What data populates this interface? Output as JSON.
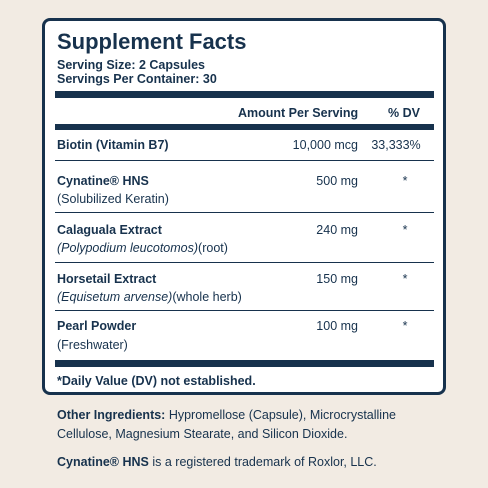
{
  "panel": {
    "title": "Supplement Facts",
    "serving_size": "Serving Size: 2 Capsules",
    "servings_per_container": "Servings Per Container: 30",
    "columns": [
      "Amount Per Serving",
      "% DV"
    ],
    "rows": [
      {
        "name": "Biotin (Vitamin B7)",
        "amount": "10,000 mcg",
        "dv": "33,333%"
      },
      {
        "name": "Cynatine® HNS",
        "note": "(Solubilized Keratin)",
        "amount": "500 mg",
        "dv": "*"
      },
      {
        "name": "Calaguala Extract",
        "note_italic": "(Polypodium leucotomos)",
        "note": "(root)",
        "amount": "240 mg",
        "dv": "*"
      },
      {
        "name": "Horsetail Extract",
        "note_italic": "(Equisetum arvense)",
        "note": "(whole herb)",
        "amount": "150 mg",
        "dv": "*"
      },
      {
        "name": "Pearl Powder",
        "note": "(Freshwater)",
        "amount": "100 mg",
        "dv": "*"
      }
    ],
    "footnote": "*Daily Value (DV) not established."
  },
  "other_ingredients": {
    "label": "Other Ingredients:",
    "text": "Hypromellose (Capsule), Microcrystalline Cellulose, Magnesium Stearate, and Silicon Dioxide."
  },
  "trademark": {
    "name": "Cynatine® HNS",
    "text": "is a registered trademark of Roxlor, LLC."
  }
}
